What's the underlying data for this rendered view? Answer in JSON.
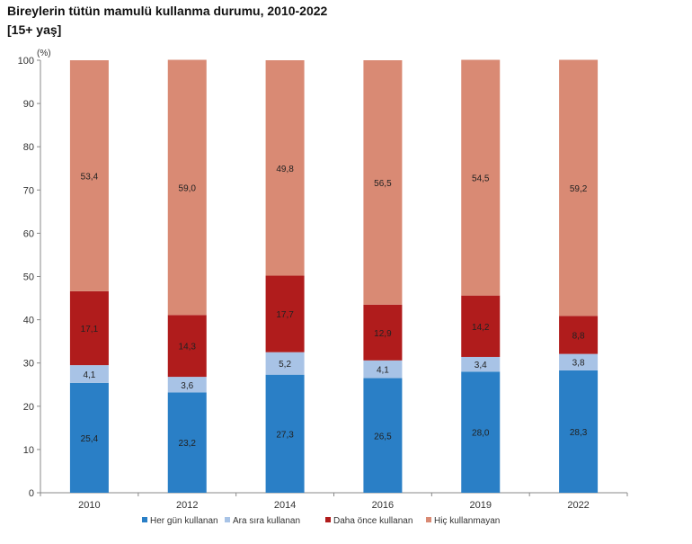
{
  "chart_data": {
    "type": "bar",
    "stacked": true,
    "title": "Bireylerin tütün mamulü kullanma durumu, 2010-2022",
    "subtitle": "[15+ yaş]",
    "ylabel": "(%)",
    "xlabel": "",
    "ylim": [
      0,
      100
    ],
    "yticks": [
      0,
      10,
      20,
      30,
      40,
      50,
      60,
      70,
      80,
      90,
      100
    ],
    "grid": false,
    "legend": "bottom",
    "categories": [
      "2010",
      "2012",
      "2014",
      "2016",
      "2019",
      "2022"
    ],
    "series": [
      {
        "name": "Her gün kullanan",
        "color": "#2a7fc6",
        "values": [
          25.4,
          23.2,
          27.3,
          26.5,
          28.0,
          28.3
        ],
        "labels": [
          "25,4",
          "23,2",
          "27,3",
          "26,5",
          "28,0",
          "28,3"
        ]
      },
      {
        "name": "Ara sıra kullanan",
        "color": "#a8c3e6",
        "values": [
          4.1,
          3.6,
          5.2,
          4.1,
          3.4,
          3.8
        ],
        "labels": [
          "4,1",
          "3,6",
          "5,2",
          "4,1",
          "3,4",
          "3,8"
        ]
      },
      {
        "name": "Daha önce kullanan",
        "color": "#b01c1c",
        "values": [
          17.1,
          14.3,
          17.7,
          12.9,
          14.2,
          8.8
        ],
        "labels": [
          "17,1",
          "14,3",
          "17,7",
          "12,9",
          "14,2",
          "8,8"
        ]
      },
      {
        "name": "Hiç kullanmayan",
        "color": "#d98a74",
        "values": [
          53.4,
          59.0,
          49.8,
          56.5,
          54.5,
          59.2
        ],
        "labels": [
          "53,4",
          "59,0",
          "49,8",
          "56,5",
          "54,5",
          "59,2"
        ]
      }
    ]
  }
}
